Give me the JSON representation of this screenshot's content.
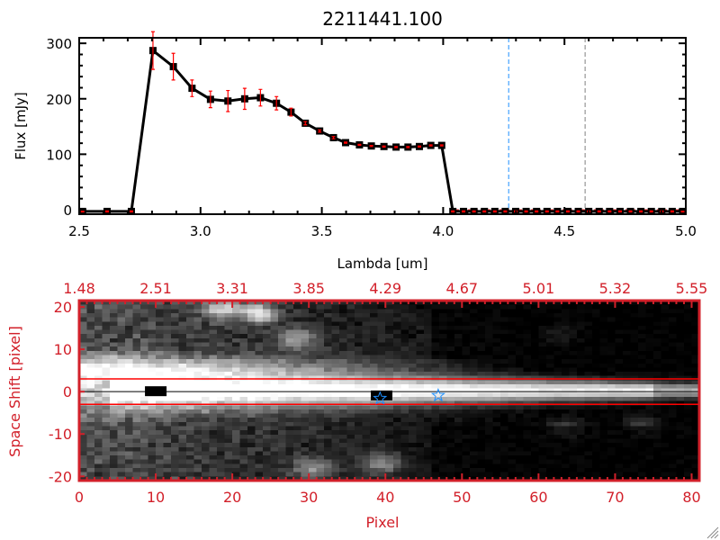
{
  "title": "2211441.100",
  "colors": {
    "axis_top": "#000000",
    "axis_bottom": "#d2202a",
    "errorbar": "#ff0000",
    "line_blue": "#1e90ff",
    "line_gray": "#808080",
    "star": "#1e90ff"
  },
  "chart_data": [
    {
      "type": "line",
      "xlabel": "Lambda [um]",
      "ylabel": "Flux [mJy]",
      "xlim": [
        2.5,
        5.0
      ],
      "ylim": [
        -8,
        310
      ],
      "xticks": [
        "2.5",
        "3.0",
        "3.5",
        "4.0",
        "4.5",
        "5.0"
      ],
      "xtick_values": [
        2.5,
        3.0,
        3.5,
        4.0,
        4.5,
        5.0
      ],
      "yticks": [
        "0",
        "100",
        "200",
        "300"
      ],
      "ytick_values": [
        0,
        100,
        200,
        300
      ],
      "x": [
        2.514,
        2.615,
        2.715,
        2.804,
        2.888,
        2.965,
        3.041,
        3.113,
        3.182,
        3.247,
        3.313,
        3.373,
        3.432,
        3.491,
        3.548,
        3.598,
        3.655,
        3.704,
        3.756,
        3.806,
        3.855,
        3.902,
        3.949,
        3.994,
        4.04,
        4.084,
        4.127,
        4.17,
        4.213,
        4.256,
        4.299,
        4.342,
        4.385,
        4.428,
        4.471,
        4.514,
        4.557,
        4.6,
        4.643,
        4.686,
        4.729,
        4.772,
        4.815,
        4.858,
        4.901,
        4.944,
        4.987
      ],
      "y": [
        -3,
        -3,
        -3,
        287,
        258,
        219,
        199,
        196,
        200,
        202,
        192,
        176,
        156,
        142,
        130,
        121,
        117,
        115,
        114,
        113,
        113,
        114,
        116,
        116,
        -3,
        -3,
        -3,
        -3,
        -3,
        -3,
        -3,
        -3,
        -3,
        -3,
        -3,
        -3,
        -3,
        -3,
        -3,
        -3,
        -3,
        -3,
        -3,
        -3,
        -3,
        -3,
        -3
      ],
      "yerr": [
        1,
        1,
        1,
        34,
        24,
        15,
        15,
        19,
        19,
        15,
        12,
        7,
        3,
        2,
        2,
        1,
        1,
        1,
        1,
        1,
        1,
        1,
        1,
        1,
        1,
        1,
        1,
        1,
        1,
        1,
        1,
        1,
        1,
        1,
        1,
        1,
        1,
        1,
        1,
        1,
        1,
        1,
        1,
        1,
        1,
        1,
        1
      ],
      "vlines": [
        {
          "x": 4.27,
          "color": "#1e90ff",
          "style": "dashed"
        },
        {
          "x": 4.585,
          "color": "#808080",
          "style": "dashed"
        }
      ],
      "hline": {
        "y": 0,
        "color": "#ff0000",
        "style": "dashed",
        "from_x": 4.05
      }
    },
    {
      "type": "heatmap",
      "colormap": "grayscale",
      "xlabel": "Pixel",
      "ylabel": "Space Shift [pixel]",
      "xlim": [
        0,
        81
      ],
      "ylim": [
        -21,
        21.5
      ],
      "xticks": [
        "0",
        "10",
        "20",
        "30",
        "40",
        "50",
        "60",
        "70",
        "80"
      ],
      "xtick_values": [
        0,
        10,
        20,
        30,
        40,
        50,
        60,
        70,
        80
      ],
      "top_xticks": [
        "1.48",
        "2.51",
        "3.31",
        "3.85",
        "4.29",
        "4.67",
        "5.01",
        "5.32",
        "5.55"
      ],
      "yticks": [
        "20",
        "10",
        "0",
        "-10",
        "-20"
      ],
      "ytick_values": [
        20,
        10,
        0,
        -10,
        -20
      ],
      "aperture_lines": [
        3,
        -3
      ],
      "center_line": 0,
      "stars": [
        {
          "x": 39.3,
          "y": -1.6
        },
        {
          "x": 46.9,
          "y": -0.9
        }
      ],
      "masked_blobs": [
        {
          "x": 10,
          "y": 0
        },
        {
          "x": 39.5,
          "y": -1
        }
      ]
    }
  ]
}
